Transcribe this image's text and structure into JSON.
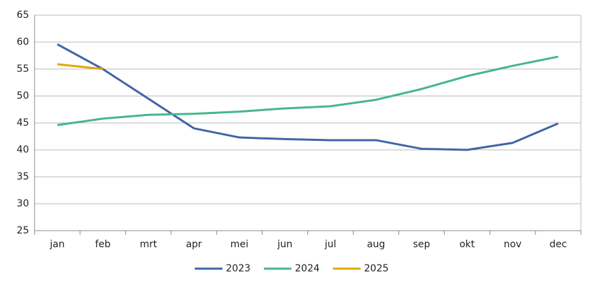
{
  "chart_data": {
    "type": "line",
    "categories": [
      "jan",
      "feb",
      "mrt",
      "apr",
      "mei",
      "jun",
      "jul",
      "aug",
      "sep",
      "okt",
      "nov",
      "dec"
    ],
    "series": [
      {
        "name": "2023",
        "color": "#3f64a8",
        "values": [
          59.6,
          55.0,
          49.5,
          44.0,
          42.3,
          42.0,
          41.8,
          41.8,
          40.2,
          40.0,
          41.3,
          44.9
        ]
      },
      {
        "name": "2024",
        "color": "#45b68a",
        "values": [
          44.6,
          45.8,
          46.5,
          46.7,
          47.1,
          47.7,
          48.1,
          49.3,
          51.3,
          53.7,
          55.6,
          57.3
        ]
      },
      {
        "name": "2025",
        "color": "#e0a800",
        "values": [
          55.9,
          55.0,
          null,
          null,
          null,
          null,
          null,
          null,
          null,
          null,
          null,
          null
        ]
      }
    ],
    "ylim": [
      25,
      65
    ],
    "yticks": [
      25,
      30,
      35,
      40,
      45,
      50,
      55,
      60,
      65
    ],
    "grid": true,
    "legend": "bottom"
  }
}
